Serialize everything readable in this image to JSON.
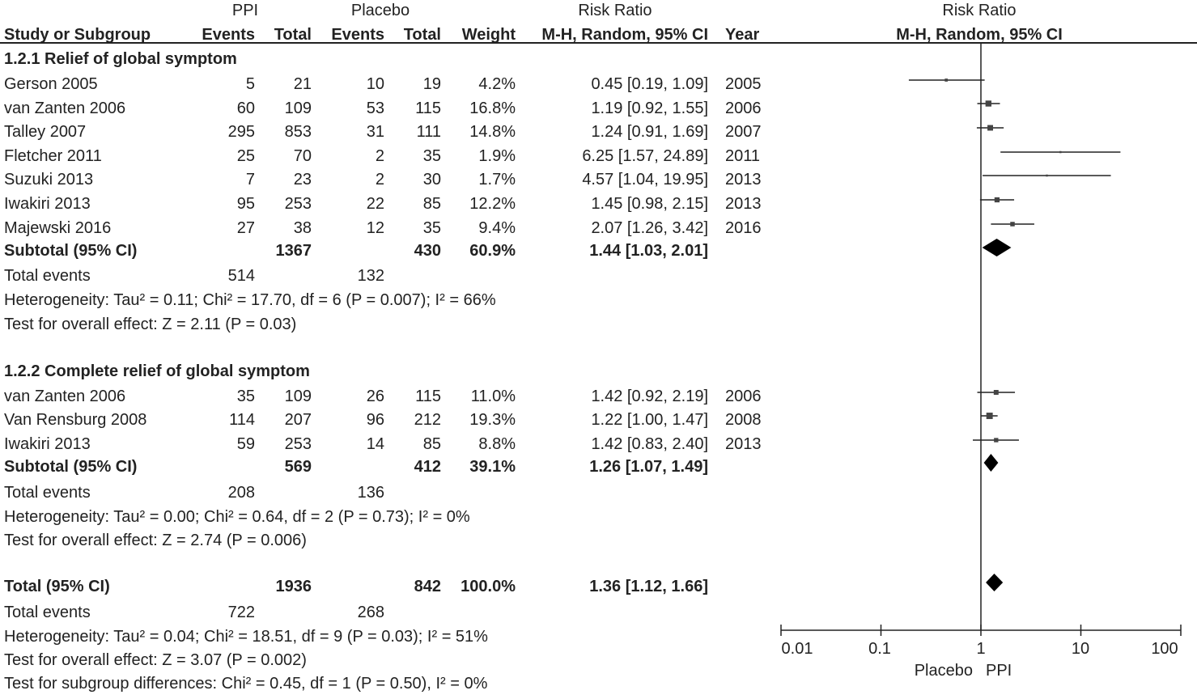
{
  "headers": {
    "ppi": "PPI",
    "placebo": "Placebo",
    "risk_ratio_left": "Risk Ratio",
    "risk_ratio_right": "Risk Ratio",
    "study": "Study or Subgroup",
    "ppi_events": "Events",
    "ppi_total": "Total",
    "pl_events": "Events",
    "pl_total": "Total",
    "weight": "Weight",
    "method_left": "M-H, Random, 95% CI",
    "year": "Year",
    "method_right": "M-H, Random, 95% CI"
  },
  "subgroups": [
    {
      "title": "1.2.1 Relief of global symptom",
      "studies": [
        {
          "name": "Gerson 2005",
          "ppi_events": "5",
          "ppi_total": "21",
          "pl_events": "10",
          "pl_total": "19",
          "weight": "4.2%",
          "ci": "0.45 [0.19, 1.09]",
          "year": "2005"
        },
        {
          "name": "van Zanten 2006",
          "ppi_events": "60",
          "ppi_total": "109",
          "pl_events": "53",
          "pl_total": "115",
          "weight": "16.8%",
          "ci": "1.19 [0.92, 1.55]",
          "year": "2006"
        },
        {
          "name": "Talley 2007",
          "ppi_events": "295",
          "ppi_total": "853",
          "pl_events": "31",
          "pl_total": "111",
          "weight": "14.8%",
          "ci": "1.24 [0.91, 1.69]",
          "year": "2007"
        },
        {
          "name": "Fletcher 2011",
          "ppi_events": "25",
          "ppi_total": "70",
          "pl_events": "2",
          "pl_total": "35",
          "weight": "1.9%",
          "ci": "6.25 [1.57, 24.89]",
          "year": "2011"
        },
        {
          "name": "Suzuki 2013",
          "ppi_events": "7",
          "ppi_total": "23",
          "pl_events": "2",
          "pl_total": "30",
          "weight": "1.7%",
          "ci": "4.57 [1.04, 19.95]",
          "year": "2013"
        },
        {
          "name": "Iwakiri 2013",
          "ppi_events": "95",
          "ppi_total": "253",
          "pl_events": "22",
          "pl_total": "85",
          "weight": "12.2%",
          "ci": "1.45 [0.98, 2.15]",
          "year": "2013"
        },
        {
          "name": "Majewski 2016",
          "ppi_events": "27",
          "ppi_total": "38",
          "pl_events": "12",
          "pl_total": "35",
          "weight": "9.4%",
          "ci": "2.07 [1.26, 3.42]",
          "year": "2016"
        }
      ],
      "subtotal": {
        "label": "Subtotal (95% CI)",
        "ppi_total": "1367",
        "pl_total": "430",
        "weight": "60.9%",
        "ci": "1.44 [1.03, 2.01]"
      },
      "events": {
        "label": "Total events",
        "ppi": "514",
        "placebo": "132"
      },
      "heterogeneity": "Heterogeneity: Tau² = 0.11; Chi² = 17.70, df = 6 (P = 0.007); I² = 66%",
      "overall": "Test for overall effect: Z = 2.11 (P = 0.03)"
    },
    {
      "title": "1.2.2 Complete relief of global symptom",
      "studies": [
        {
          "name": "van Zanten 2006",
          "ppi_events": "35",
          "ppi_total": "109",
          "pl_events": "26",
          "pl_total": "115",
          "weight": "11.0%",
          "ci": "1.42 [0.92, 2.19]",
          "year": "2006"
        },
        {
          "name": "Van Rensburg 2008",
          "ppi_events": "114",
          "ppi_total": "207",
          "pl_events": "96",
          "pl_total": "212",
          "weight": "19.3%",
          "ci": "1.22 [1.00, 1.47]",
          "year": "2008"
        },
        {
          "name": "Iwakiri 2013",
          "ppi_events": "59",
          "ppi_total": "253",
          "pl_events": "14",
          "pl_total": "85",
          "weight": "8.8%",
          "ci": "1.42 [0.83, 2.40]",
          "year": "2013"
        }
      ],
      "subtotal": {
        "label": "Subtotal (95% CI)",
        "ppi_total": "569",
        "pl_total": "412",
        "weight": "39.1%",
        "ci": "1.26 [1.07, 1.49]"
      },
      "events": {
        "label": "Total events",
        "ppi": "208",
        "placebo": "136"
      },
      "heterogeneity": "Heterogeneity: Tau² = 0.00; Chi² = 0.64, df = 2 (P = 0.73); I² = 0%",
      "overall": "Test for overall effect: Z = 2.74 (P = 0.006)"
    }
  ],
  "total": {
    "label": "Total (95% CI)",
    "ppi_total": "1936",
    "pl_total": "842",
    "weight": "100.0%",
    "ci": "1.36 [1.12, 1.66]",
    "events_label": "Total events",
    "events_ppi": "722",
    "events_pl": "268",
    "heterogeneity": "Heterogeneity: Tau² = 0.04; Chi² = 18.51, df = 9 (P = 0.03); I² = 51%",
    "overall": "Test for overall effect: Z = 3.07 (P = 0.002)",
    "subgroup_diff": "Test for subgroup differences: Chi² = 0.45, df = 1 (P = 0.50), I² = 0%"
  },
  "chart_data": {
    "type": "forest",
    "scale": "log",
    "xlim": [
      0.01,
      100
    ],
    "null_value": 1,
    "tick_labels": [
      "0.01",
      "0.1",
      "1",
      "10",
      "100"
    ],
    "tick_values": [
      0.01,
      0.1,
      1,
      10,
      100
    ],
    "favours_left": "Placebo",
    "favours_right": "PPI",
    "studies": [
      {
        "name": "Gerson 2005",
        "rr": 0.45,
        "lo": 0.19,
        "hi": 1.09,
        "weight": 4.2
      },
      {
        "name": "van Zanten 2006",
        "rr": 1.19,
        "lo": 0.92,
        "hi": 1.55,
        "weight": 16.8
      },
      {
        "name": "Talley 2007",
        "rr": 1.24,
        "lo": 0.91,
        "hi": 1.69,
        "weight": 14.8
      },
      {
        "name": "Fletcher 2011",
        "rr": 6.25,
        "lo": 1.57,
        "hi": 24.89,
        "weight": 1.9
      },
      {
        "name": "Suzuki 2013",
        "rr": 4.57,
        "lo": 1.04,
        "hi": 19.95,
        "weight": 1.7
      },
      {
        "name": "Iwakiri 2013",
        "rr": 1.45,
        "lo": 0.98,
        "hi": 2.15,
        "weight": 12.2
      },
      {
        "name": "Majewski 2016",
        "rr": 2.07,
        "lo": 1.26,
        "hi": 3.42,
        "weight": 9.4
      },
      {
        "name": "Subtotal 1.2.1",
        "rr": 1.44,
        "lo": 1.03,
        "hi": 2.01,
        "diamond": true
      },
      {
        "name": "van Zanten 2006",
        "rr": 1.42,
        "lo": 0.92,
        "hi": 2.19,
        "weight": 11.0
      },
      {
        "name": "Van Rensburg 2008",
        "rr": 1.22,
        "lo": 1.0,
        "hi": 1.47,
        "weight": 19.3
      },
      {
        "name": "Iwakiri 2013",
        "rr": 1.42,
        "lo": 0.83,
        "hi": 2.4,
        "weight": 8.8
      },
      {
        "name": "Subtotal 1.2.2",
        "rr": 1.26,
        "lo": 1.07,
        "hi": 1.49,
        "diamond": true
      },
      {
        "name": "Total",
        "rr": 1.36,
        "lo": 1.12,
        "hi": 1.66,
        "diamond": true
      }
    ]
  }
}
